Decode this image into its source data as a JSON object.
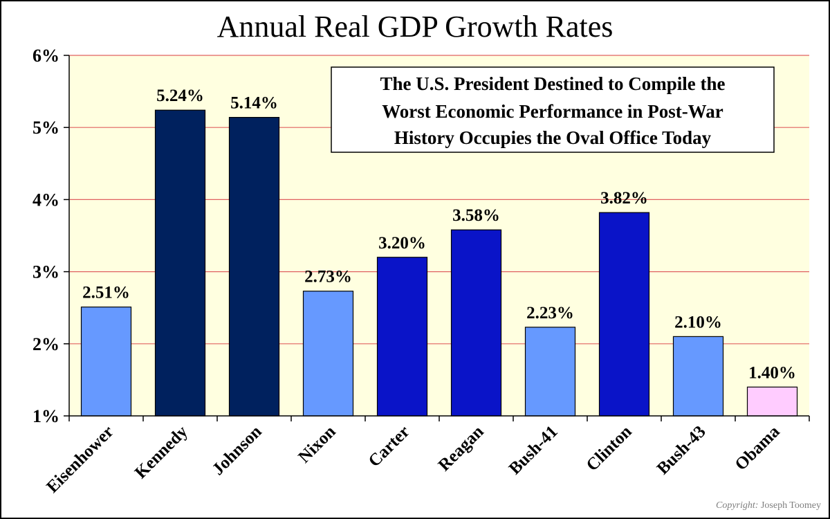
{
  "chart_data": {
    "type": "bar",
    "title": "Annual Real GDP Growth Rates",
    "categories": [
      "Eisenhower",
      "Kennedy",
      "Johnson",
      "Nixon",
      "Carter",
      "Reagan",
      "Bush-41",
      "Clinton",
      "Bush-43",
      "Obama"
    ],
    "values": [
      2.51,
      5.24,
      5.14,
      2.73,
      3.2,
      3.58,
      2.23,
      3.82,
      2.1,
      1.4
    ],
    "data_labels": [
      "2.51%",
      "5.24%",
      "5.14%",
      "2.73%",
      "3.20%",
      "3.58%",
      "2.23%",
      "3.82%",
      "2.10%",
      "1.40%"
    ],
    "bar_colors": [
      "#6699ff",
      "#00215e",
      "#00215e",
      "#6699ff",
      "#0a14c8",
      "#0a14c8",
      "#6699ff",
      "#0a14c8",
      "#6699ff",
      "#ffccff"
    ],
    "ylim": [
      1,
      6
    ],
    "y_ticks": [
      1,
      2,
      3,
      4,
      5,
      6
    ],
    "y_tick_labels": [
      "1%",
      "2%",
      "3%",
      "4%",
      "5%",
      "6%"
    ],
    "xlabel": "",
    "ylabel": "",
    "grid": true,
    "grid_color": "#e06060",
    "plot_background": "#ffffe0",
    "annotation": {
      "lines": [
        "The U.S. President Destined to Compile the",
        "Worst Economic Performance in Post-War",
        "History Occupies the Oval Office Today"
      ]
    },
    "copyright": {
      "prefix": "Copyright:",
      "name": "Joseph Toomey"
    }
  }
}
